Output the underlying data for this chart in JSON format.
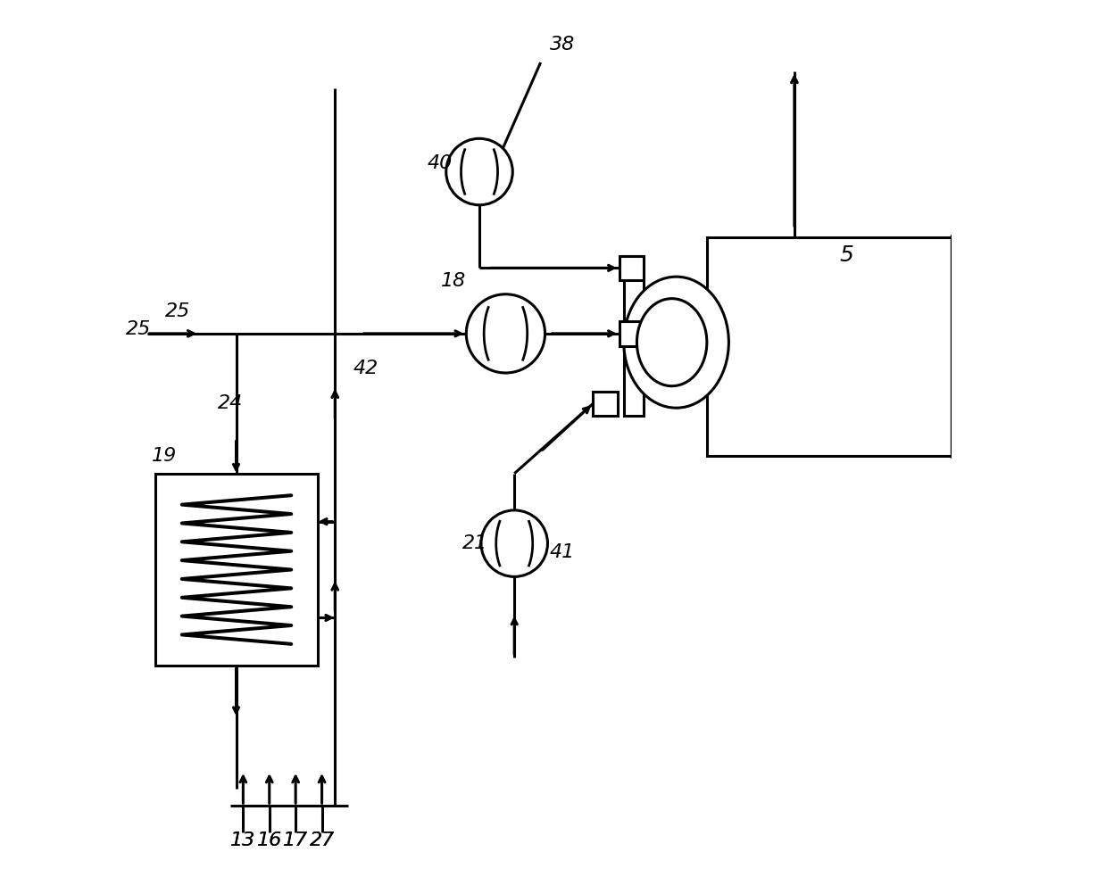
{
  "background_color": "#ffffff",
  "line_color": "#000000",
  "lw": 2.2,
  "fs": 16,
  "figsize": [
    12.39,
    9.83
  ],
  "dpi": 100
}
